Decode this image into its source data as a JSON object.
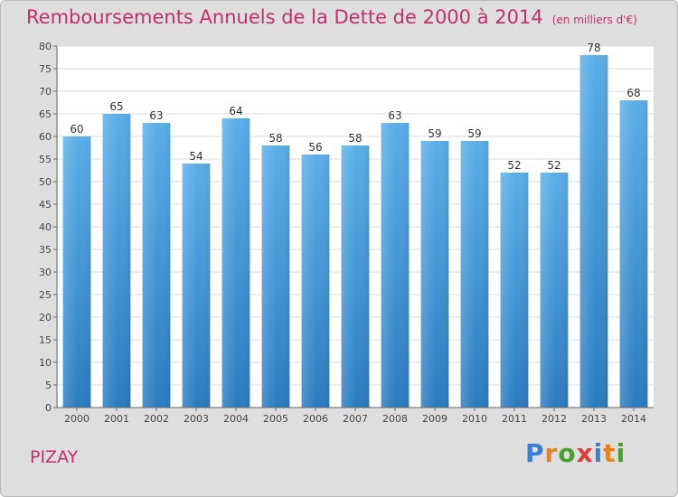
{
  "header": {
    "title": "Remboursements Annuels de la Dette de 2000 à 2014",
    "subtitle": "(en milliers d'€)"
  },
  "footer": {
    "place": "PIZAY",
    "logo_text": "Proxiti",
    "logo_colors": [
      "#3a7fd0",
      "#e8821e",
      "#4aa02c",
      "#e03b3b",
      "#3a7fd0",
      "#e8821e",
      "#4aa02c"
    ]
  },
  "chart_data": {
    "type": "bar",
    "title": "Remboursements Annuels de la Dette de 2000 à 2014",
    "subtitle": "(en milliers d'€)",
    "categories": [
      "2000",
      "2001",
      "2002",
      "2003",
      "2004",
      "2005",
      "2006",
      "2007",
      "2008",
      "2009",
      "2010",
      "2011",
      "2012",
      "2013",
      "2014"
    ],
    "values": [
      60,
      65,
      63,
      54,
      64,
      58,
      56,
      58,
      63,
      59,
      59,
      52,
      52,
      78,
      68
    ],
    "ylim": [
      0,
      80
    ],
    "yticks": [
      0,
      5,
      10,
      15,
      20,
      25,
      30,
      35,
      40,
      45,
      50,
      55,
      60,
      65,
      70,
      75,
      80
    ],
    "grid": true,
    "bar_color_top": "#5aaee8",
    "bar_color_bottom": "#2a7cc0",
    "plot_background": "#ffffff",
    "grid_color": "#dddddd",
    "axis_text_color": "#444444"
  }
}
